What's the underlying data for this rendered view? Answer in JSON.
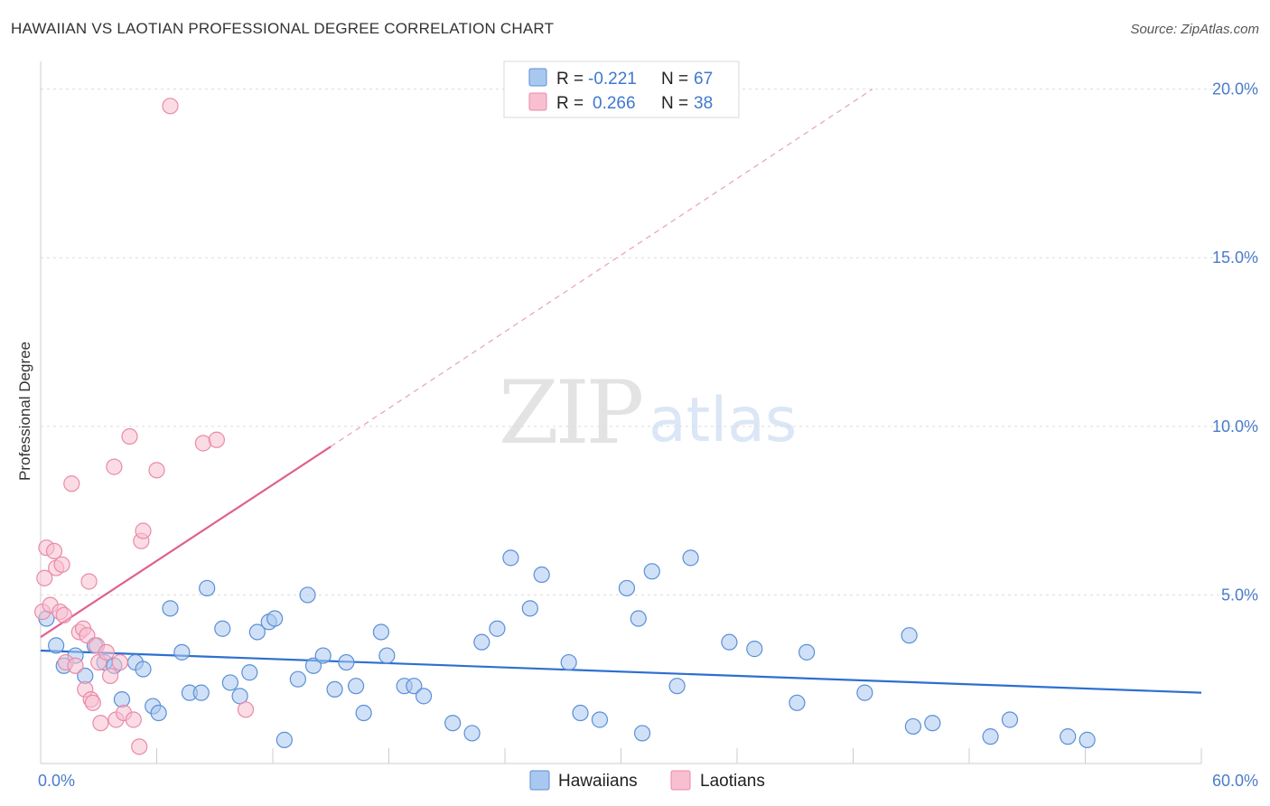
{
  "title": "HAWAIIAN VS LAOTIAN PROFESSIONAL DEGREE CORRELATION CHART",
  "source": "Source: ZipAtlas.com",
  "watermark": {
    "zip": "ZIP",
    "atlas": "atlas"
  },
  "legend": {
    "rows": [
      {
        "r_label": "R =",
        "r_value": "-0.221",
        "n_label": "N =",
        "n_value": "67"
      },
      {
        "r_label": "R =",
        "r_value": "0.266",
        "n_label": "N =",
        "n_value": "38"
      }
    ]
  },
  "bottom_legend": [
    "Hawaiians",
    "Laotians"
  ],
  "colors": {
    "hawaiian_fill": "#a9c8f0",
    "hawaiian_stroke": "#5b8fd6",
    "hawaiian_line": "#2e6fd0",
    "laotian_fill": "#f8bfd0",
    "laotian_stroke": "#e98aa8",
    "laotian_line": "#e0608e"
  },
  "chart_data": {
    "type": "scatter",
    "title": "HAWAIIAN VS LAOTIAN PROFESSIONAL DEGREE CORRELATION CHART",
    "xlabel": "",
    "ylabel": "Professional Degree",
    "xlim": [
      0,
      60
    ],
    "ylim": [
      0,
      20.5
    ],
    "x_tick_labels": [
      "0.0%",
      "60.0%"
    ],
    "y_ticks": [
      5,
      10,
      15,
      20
    ],
    "y_tick_labels": [
      "5.0%",
      "10.0%",
      "15.0%",
      "20.0%"
    ],
    "grid": true,
    "series": [
      {
        "name": "Hawaiians",
        "r": -0.221,
        "n": 67,
        "trend": {
          "x0": 0,
          "y0": 3.35,
          "x1": 60,
          "y1": 2.1,
          "dashed_from": null
        },
        "points": [
          [
            0.3,
            4.3
          ],
          [
            0.8,
            3.5
          ],
          [
            1.2,
            2.9
          ],
          [
            1.8,
            3.2
          ],
          [
            2.3,
            2.6
          ],
          [
            2.8,
            3.5
          ],
          [
            3.3,
            3.0
          ],
          [
            3.8,
            2.9
          ],
          [
            4.2,
            1.9
          ],
          [
            4.9,
            3.0
          ],
          [
            5.3,
            2.8
          ],
          [
            5.8,
            1.7
          ],
          [
            6.1,
            1.5
          ],
          [
            6.7,
            4.6
          ],
          [
            7.3,
            3.3
          ],
          [
            7.7,
            2.1
          ],
          [
            8.3,
            2.1
          ],
          [
            8.6,
            5.2
          ],
          [
            9.4,
            4.0
          ],
          [
            9.8,
            2.4
          ],
          [
            10.3,
            2.0
          ],
          [
            10.8,
            2.7
          ],
          [
            11.2,
            3.9
          ],
          [
            11.8,
            4.2
          ],
          [
            12.1,
            4.3
          ],
          [
            12.6,
            0.7
          ],
          [
            13.3,
            2.5
          ],
          [
            13.8,
            5.0
          ],
          [
            14.1,
            2.9
          ],
          [
            14.6,
            3.2
          ],
          [
            15.2,
            2.2
          ],
          [
            15.8,
            3.0
          ],
          [
            16.3,
            2.3
          ],
          [
            16.7,
            1.5
          ],
          [
            17.6,
            3.9
          ],
          [
            17.9,
            3.2
          ],
          [
            18.8,
            2.3
          ],
          [
            19.3,
            2.3
          ],
          [
            19.8,
            2.0
          ],
          [
            21.3,
            1.2
          ],
          [
            22.3,
            0.9
          ],
          [
            22.8,
            3.6
          ],
          [
            23.6,
            4.0
          ],
          [
            24.3,
            6.1
          ],
          [
            25.3,
            4.6
          ],
          [
            25.9,
            5.6
          ],
          [
            27.3,
            3.0
          ],
          [
            27.9,
            1.5
          ],
          [
            28.9,
            1.3
          ],
          [
            30.3,
            5.2
          ],
          [
            30.9,
            4.3
          ],
          [
            31.1,
            0.9
          ],
          [
            31.6,
            5.7
          ],
          [
            32.9,
            2.3
          ],
          [
            33.6,
            6.1
          ],
          [
            35.6,
            3.6
          ],
          [
            36.9,
            3.4
          ],
          [
            39.1,
            1.8
          ],
          [
            39.6,
            3.3
          ],
          [
            42.6,
            2.1
          ],
          [
            44.9,
            3.8
          ],
          [
            45.1,
            1.1
          ],
          [
            46.1,
            1.2
          ],
          [
            49.1,
            0.8
          ],
          [
            50.1,
            1.3
          ],
          [
            53.1,
            0.8
          ],
          [
            54.1,
            0.7
          ]
        ]
      },
      {
        "name": "Laotians",
        "r": 0.266,
        "n": 38,
        "trend": {
          "x0": 0,
          "y0": 3.75,
          "x1": 15,
          "y1": 9.4,
          "dashed_to_x": 43,
          "dashed_to_y": 20.0
        },
        "points": [
          [
            0.1,
            4.5
          ],
          [
            0.2,
            5.5
          ],
          [
            0.3,
            6.4
          ],
          [
            0.5,
            4.7
          ],
          [
            0.7,
            6.3
          ],
          [
            0.8,
            5.8
          ],
          [
            1.0,
            4.5
          ],
          [
            1.1,
            5.9
          ],
          [
            1.2,
            4.4
          ],
          [
            1.3,
            3.0
          ],
          [
            1.6,
            8.3
          ],
          [
            1.8,
            2.9
          ],
          [
            2.0,
            3.9
          ],
          [
            2.2,
            4.0
          ],
          [
            2.3,
            2.2
          ],
          [
            2.4,
            3.8
          ],
          [
            2.5,
            5.4
          ],
          [
            2.6,
            1.9
          ],
          [
            2.7,
            1.8
          ],
          [
            2.9,
            3.5
          ],
          [
            3.0,
            3.0
          ],
          [
            3.1,
            1.2
          ],
          [
            3.4,
            3.3
          ],
          [
            3.6,
            2.6
          ],
          [
            3.8,
            8.8
          ],
          [
            3.9,
            1.3
          ],
          [
            4.1,
            3.0
          ],
          [
            4.3,
            1.5
          ],
          [
            4.6,
            9.7
          ],
          [
            4.8,
            1.3
          ],
          [
            5.1,
            0.5
          ],
          [
            5.2,
            6.6
          ],
          [
            5.3,
            6.9
          ],
          [
            6.0,
            8.7
          ],
          [
            6.7,
            19.5
          ],
          [
            8.4,
            9.5
          ],
          [
            9.1,
            9.6
          ],
          [
            10.6,
            1.6
          ]
        ]
      }
    ]
  }
}
